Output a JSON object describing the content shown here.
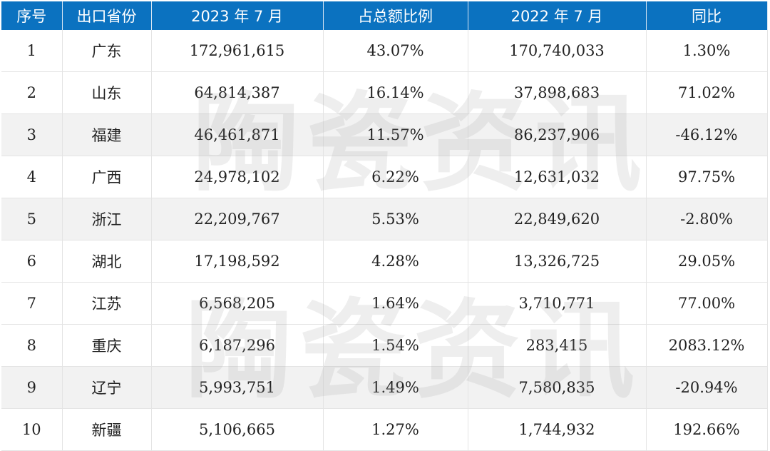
{
  "header": [
    "序号",
    "出口省份",
    "2023 年 7 月",
    "占总额比例",
    "2022 年 7 月",
    "同比"
  ],
  "rows": [
    [
      "1",
      "广东",
      "172,961,615",
      "43.07%",
      "170,740,033",
      "1.30%"
    ],
    [
      "2",
      "山东",
      "64,814,387",
      "16.14%",
      "37,898,683",
      "71.02%"
    ],
    [
      "3",
      "福建",
      "46,461,871",
      "11.57%",
      "86,237,906",
      "-46.12%"
    ],
    [
      "4",
      "广西",
      "24,978,102",
      "6.22%",
      "12,631,032",
      "97.75%"
    ],
    [
      "5",
      "浙江",
      "22,209,767",
      "5.53%",
      "22,849,620",
      "-2.80%"
    ],
    [
      "6",
      "湖北",
      "17,198,592",
      "4.28%",
      "13,326,725",
      "29.05%"
    ],
    [
      "7",
      "江苏",
      "6,568,205",
      "1.64%",
      "3,710,771",
      "77.00%"
    ],
    [
      "8",
      "重庆",
      "6,187,296",
      "1.54%",
      "283,415",
      "2083.12%"
    ],
    [
      "9",
      "辽宁",
      "5,993,751",
      "1.49%",
      "7,580,835",
      "-20.94%"
    ],
    [
      "10",
      "新疆",
      "5,106,665",
      "1.27%",
      "1,744,932",
      "192.66%"
    ]
  ],
  "gray_rows": [
    2,
    4,
    8
  ],
  "colors": {
    "header_bg": "#0b72c0",
    "alt_row": "#f2f2f2"
  },
  "watermark": "陶瓷资讯"
}
